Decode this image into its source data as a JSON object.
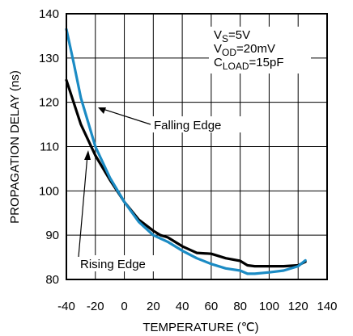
{
  "chart_data": {
    "type": "line",
    "xlabel": "TEMPERATURE (℃)",
    "ylabel": "PROPAGATION DELAY (ns)",
    "xlim": [
      -40,
      140
    ],
    "ylim": [
      80,
      140
    ],
    "x_ticks": [
      "-40",
      "-20",
      "0",
      "20",
      "40",
      "60",
      "80",
      "100",
      "120",
      "140"
    ],
    "y_ticks": [
      "80",
      "90",
      "100",
      "110",
      "120",
      "130",
      "140"
    ],
    "grid": true,
    "series": [
      {
        "name": "Rising Edge",
        "color": "#000000",
        "x": [
          -40,
          -30,
          -20,
          -10,
          0,
          10,
          20,
          25,
          30,
          40,
          50,
          60,
          70,
          80,
          85,
          90,
          100,
          110,
          120,
          125
        ],
        "y": [
          125,
          115,
          108,
          102.5,
          97.5,
          93.5,
          91,
          90,
          89.5,
          87.5,
          86,
          85.8,
          84.8,
          84.2,
          83.2,
          83,
          83,
          83,
          83.2,
          84
        ]
      },
      {
        "name": "Falling Edge",
        "color": "#1b8bc4",
        "x": [
          -40,
          -35,
          -30,
          -20,
          -10,
          0,
          10,
          20,
          30,
          40,
          50,
          60,
          70,
          80,
          85,
          90,
          100,
          110,
          120,
          125
        ],
        "y": [
          136.5,
          129,
          121,
          110,
          103,
          97.5,
          93,
          90,
          88.5,
          86.5,
          84.8,
          83.5,
          82.5,
          82,
          81.3,
          81.3,
          81.6,
          82,
          83,
          84.3
        ]
      }
    ],
    "annotations": {
      "falling": "Falling Edge",
      "rising": "Rising Edge"
    },
    "conditions": {
      "vs_main": "V",
      "vs_sub": "S",
      "vs_val": "=5V",
      "vod_main": "V",
      "vod_sub": "OD",
      "vod_val": "=20mV",
      "cl_main": "C",
      "cl_sub": "LOAD",
      "cl_val": "=15pF"
    }
  }
}
